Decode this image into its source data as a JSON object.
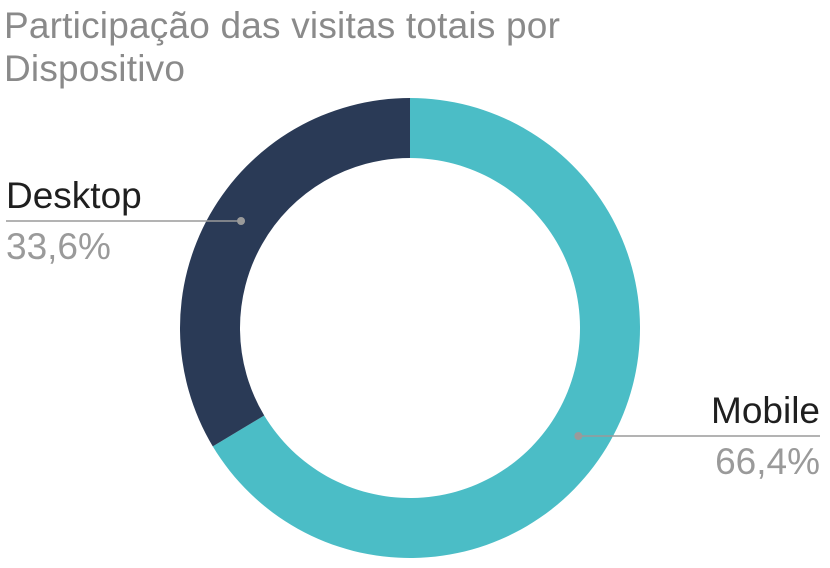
{
  "chart_data": {
    "type": "pie",
    "donut": true,
    "title": "Participação das visitas totais por Dispositivo",
    "slices": [
      {
        "label": "Mobile",
        "value": 66.4,
        "display": "66,4%",
        "color": "#4bbdc6"
      },
      {
        "label": "Desktop",
        "value": 33.6,
        "display": "33,6%",
        "color": "#2a3a56"
      }
    ],
    "legend": "none",
    "label_line_color": "#9a9a9a"
  }
}
